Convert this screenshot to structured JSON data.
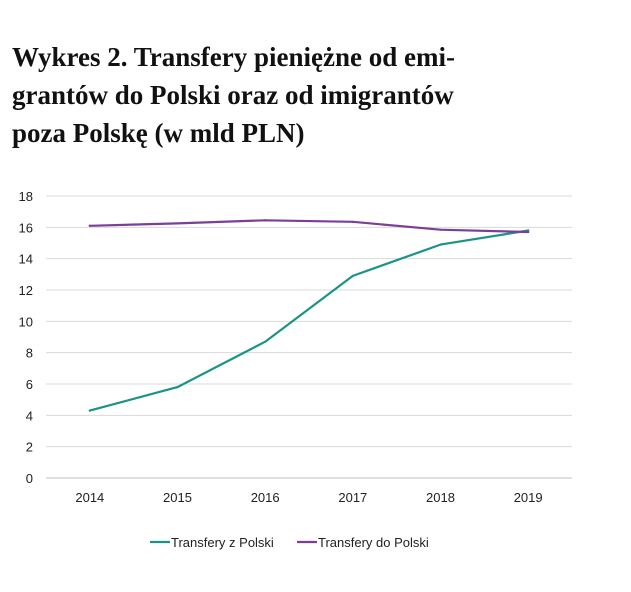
{
  "figure": {
    "title_lines": [
      "Wykres 2. Transfery pieniężne od emi-",
      "grantów do Polski oraz od imigrantów",
      "poza Polskę (w mld PLN)"
    ]
  },
  "chart_data": {
    "type": "line",
    "title": "Wykres 2. Transfery pieniężne od emigrantów do Polski oraz od imigrantów poza Polskę (w mld PLN)",
    "xlabel": "",
    "ylabel": "",
    "x": [
      "2014",
      "2015",
      "2016",
      "2017",
      "2018",
      "2019"
    ],
    "ylim": [
      0,
      18
    ],
    "yticks": [
      0,
      2,
      4,
      6,
      8,
      10,
      12,
      14,
      16,
      18
    ],
    "grid": true,
    "legend_position": "bottom",
    "series": [
      {
        "name": "Transfery z Polski",
        "color": "#1a9485",
        "values": [
          4.3,
          5.8,
          8.7,
          12.9,
          14.9,
          15.8
        ]
      },
      {
        "name": "Transfery do Polski",
        "color": "#7b3f98",
        "values": [
          16.1,
          16.25,
          16.45,
          16.35,
          15.85,
          15.7
        ]
      }
    ]
  }
}
